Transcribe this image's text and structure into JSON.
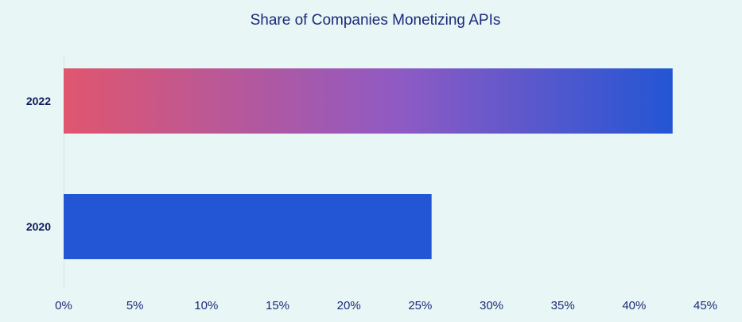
{
  "chart_data": {
    "type": "bar",
    "orientation": "horizontal",
    "title": "Share of Companies Monetizing APIs",
    "categories": [
      "2022",
      "2020"
    ],
    "values": [
      42.7,
      25.8
    ],
    "value_unit": "%",
    "xlim": [
      0,
      45
    ],
    "x_ticks": [
      "0%",
      "5%",
      "10%",
      "15%",
      "20%",
      "25%",
      "30%",
      "35%",
      "40%",
      "45%"
    ],
    "xlabel": "",
    "ylabel": "",
    "grid": false,
    "legend": "none",
    "colors": {
      "background": "#e8f6f5",
      "bar_2020": "#2356d4",
      "gradient_start": "#e0566e",
      "gradient_mid": "#8f5ac4",
      "gradient_end": "#2356d4",
      "text": "#1c2a7a"
    }
  }
}
